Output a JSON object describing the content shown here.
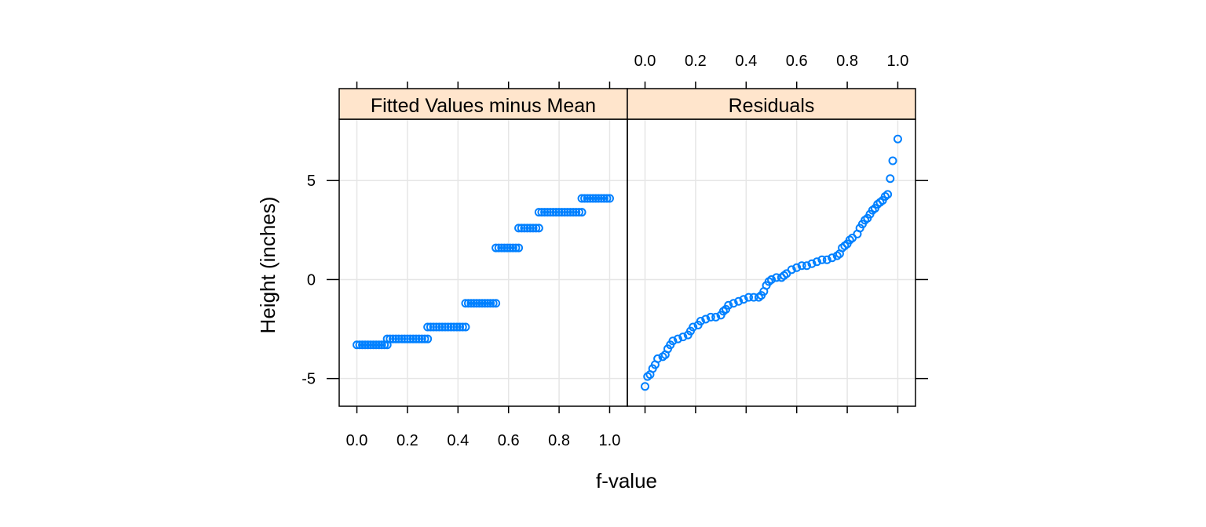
{
  "chart_data": {
    "type": "scatter",
    "layout": "two-panel rfs (residual-fit spread) plot",
    "xlabel": "f-value",
    "ylabel": "Height (inches)",
    "xlim": [
      -0.07,
      1.07
    ],
    "ylim": [
      -6.4,
      8.1
    ],
    "x_ticks": [
      0.0,
      0.2,
      0.4,
      0.6,
      0.8,
      1.0
    ],
    "x_tick_labels": [
      "0.0",
      "0.2",
      "0.4",
      "0.6",
      "0.8",
      "1.0"
    ],
    "y_ticks": [
      -5,
      0,
      5
    ],
    "y_tick_labels": [
      "-5",
      "0",
      "5"
    ],
    "grid": true,
    "strip_color": "#ffe5cc",
    "point_color": "#0080ff",
    "panels": [
      {
        "name": "Fitted Values minus Mean",
        "steps": [
          {
            "x_start": 0.0,
            "x_end": 0.12,
            "y": -3.3
          },
          {
            "x_start": 0.12,
            "x_end": 0.28,
            "y": -3.0
          },
          {
            "x_start": 0.28,
            "x_end": 0.43,
            "y": -2.4
          },
          {
            "x_start": 0.43,
            "x_end": 0.55,
            "y": -1.2
          },
          {
            "x_start": 0.55,
            "x_end": 0.64,
            "y": 1.6
          },
          {
            "x_start": 0.64,
            "x_end": 0.72,
            "y": 2.6
          },
          {
            "x_start": 0.72,
            "x_end": 0.89,
            "y": 3.4
          },
          {
            "x_start": 0.89,
            "x_end": 1.0,
            "y": 4.1
          }
        ]
      },
      {
        "name": "Residuals",
        "points": [
          [
            0.0,
            -5.4
          ],
          [
            0.01,
            -4.9
          ],
          [
            0.02,
            -4.8
          ],
          [
            0.03,
            -4.5
          ],
          [
            0.04,
            -4.3
          ],
          [
            0.05,
            -4.0
          ],
          [
            0.07,
            -3.9
          ],
          [
            0.08,
            -3.8
          ],
          [
            0.09,
            -3.5
          ],
          [
            0.1,
            -3.3
          ],
          [
            0.11,
            -3.1
          ],
          [
            0.13,
            -3.0
          ],
          [
            0.15,
            -2.9
          ],
          [
            0.17,
            -2.8
          ],
          [
            0.18,
            -2.6
          ],
          [
            0.19,
            -2.4
          ],
          [
            0.21,
            -2.3
          ],
          [
            0.22,
            -2.1
          ],
          [
            0.24,
            -2.0
          ],
          [
            0.26,
            -1.9
          ],
          [
            0.28,
            -1.9
          ],
          [
            0.3,
            -1.8
          ],
          [
            0.31,
            -1.6
          ],
          [
            0.32,
            -1.5
          ],
          [
            0.33,
            -1.3
          ],
          [
            0.35,
            -1.2
          ],
          [
            0.37,
            -1.1
          ],
          [
            0.39,
            -1.0
          ],
          [
            0.41,
            -0.9
          ],
          [
            0.43,
            -0.9
          ],
          [
            0.45,
            -0.9
          ],
          [
            0.46,
            -0.8
          ],
          [
            0.47,
            -0.6
          ],
          [
            0.48,
            -0.3
          ],
          [
            0.49,
            -0.1
          ],
          [
            0.5,
            0.0
          ],
          [
            0.52,
            0.1
          ],
          [
            0.54,
            0.1
          ],
          [
            0.55,
            0.2
          ],
          [
            0.56,
            0.3
          ],
          [
            0.58,
            0.5
          ],
          [
            0.6,
            0.6
          ],
          [
            0.62,
            0.7
          ],
          [
            0.64,
            0.7
          ],
          [
            0.66,
            0.8
          ],
          [
            0.68,
            0.9
          ],
          [
            0.7,
            1.0
          ],
          [
            0.72,
            1.0
          ],
          [
            0.74,
            1.1
          ],
          [
            0.76,
            1.2
          ],
          [
            0.77,
            1.3
          ],
          [
            0.78,
            1.6
          ],
          [
            0.79,
            1.7
          ],
          [
            0.8,
            1.8
          ],
          [
            0.81,
            2.0
          ],
          [
            0.82,
            2.1
          ],
          [
            0.84,
            2.3
          ],
          [
            0.85,
            2.6
          ],
          [
            0.86,
            2.8
          ],
          [
            0.87,
            3.0
          ],
          [
            0.88,
            3.1
          ],
          [
            0.89,
            3.3
          ],
          [
            0.9,
            3.5
          ],
          [
            0.91,
            3.6
          ],
          [
            0.92,
            3.8
          ],
          [
            0.93,
            3.9
          ],
          [
            0.94,
            4.0
          ],
          [
            0.95,
            4.2
          ],
          [
            0.96,
            4.3
          ],
          [
            0.97,
            5.1
          ],
          [
            0.98,
            6.0
          ],
          [
            1.0,
            7.1
          ]
        ]
      }
    ]
  }
}
